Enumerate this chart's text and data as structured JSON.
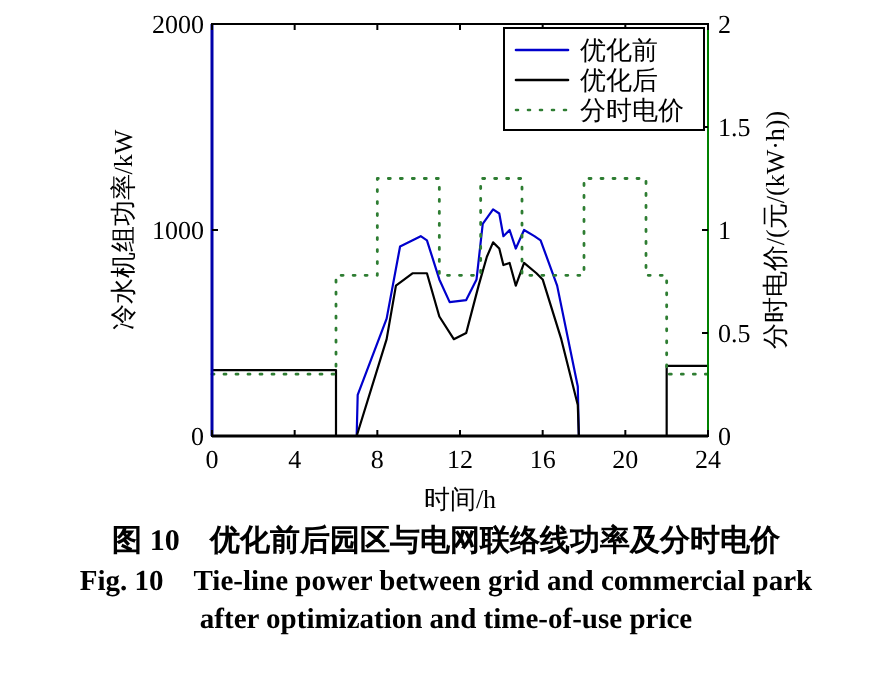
{
  "chart_data": {
    "type": "line",
    "title": "图 10　优化前后园区与电网联络线功率及分时电价",
    "subtitle": "Fig. 10　Tie-line power between grid and commercial park after optimization and time-of-use price",
    "xlabel": "时间/h",
    "ylabel": "冷水机组功率/kW",
    "y2label": "分时电价/(元/(kW·h))",
    "xlim": [
      0,
      24
    ],
    "xticks": [
      0,
      4,
      8,
      12,
      16,
      20,
      24
    ],
    "ylim": [
      0,
      2000
    ],
    "yticks": [
      0,
      1000,
      2000
    ],
    "y2lim": [
      0,
      2
    ],
    "y2ticks": [
      0,
      0.5,
      1,
      1.5,
      2
    ],
    "legend": "top right",
    "line_style": "solid",
    "series": [
      {
        "name": "优化前",
        "color": "#0000cc",
        "x": [
          7,
          7.05,
          8.45,
          9.1,
          10.1,
          10.4,
          11.0,
          11.5,
          12.3,
          12.8,
          13.1,
          13.6,
          13.9,
          14.1,
          14.4,
          14.7,
          15.1,
          15.6,
          15.9,
          16.7,
          17.7,
          17.75
        ],
        "values": [
          0,
          200,
          570,
          920,
          970,
          950,
          760,
          650,
          660,
          760,
          1030,
          1100,
          1080,
          970,
          1000,
          910,
          1000,
          970,
          950,
          730,
          240,
          0
        ]
      },
      {
        "name": "优化后",
        "color": "#000000",
        "x": [
          0,
          6,
          6,
          7,
          8.45,
          8.9,
          9.7,
          10.4,
          11.0,
          11.7,
          12.3,
          12.9,
          13.3,
          13.6,
          13.9,
          14.1,
          14.4,
          14.7,
          15.1,
          15.7,
          16.0,
          16.9,
          17.7,
          17.75,
          22,
          22,
          24
        ],
        "values": [
          320,
          320,
          0,
          0,
          470,
          730,
          790,
          790,
          580,
          470,
          500,
          730,
          870,
          940,
          910,
          830,
          840,
          730,
          840,
          790,
          760,
          470,
          150,
          0,
          0,
          340,
          340
        ]
      },
      {
        "name": "分时电价",
        "color": "#2e7d32",
        "type": "step",
        "axis": "y2",
        "line_style": "dotted",
        "x": [
          0,
          6,
          8,
          11,
          13,
          15,
          18,
          21,
          22,
          24
        ],
        "values": [
          0.3,
          0.78,
          1.25,
          0.78,
          1.25,
          0.78,
          1.25,
          0.78,
          0.3,
          0.3
        ]
      }
    ]
  }
}
